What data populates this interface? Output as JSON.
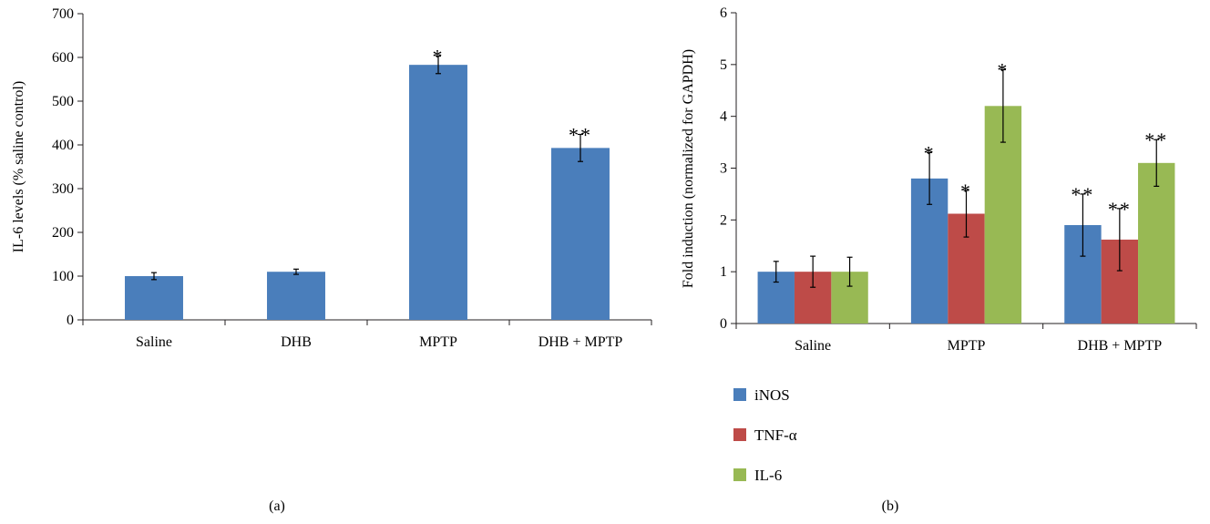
{
  "panels": {
    "a_label": "(a)",
    "b_label": "(b)"
  },
  "chart_data": [
    {
      "type": "bar",
      "ylabel": "IL-6 levels (% saline control)",
      "xlabel": "",
      "ylim": [
        0,
        700
      ],
      "yticks": [
        0,
        100,
        200,
        300,
        400,
        500,
        600,
        700
      ],
      "categories": [
        "Saline",
        "DHB",
        "MPTP",
        "DHB + MPTP"
      ],
      "series": [
        {
          "values": [
            100,
            110,
            583,
            393
          ],
          "errors": [
            8,
            6,
            20,
            31
          ],
          "color": "#4a7ebb"
        }
      ],
      "annotations": [
        "",
        "",
        "*",
        "**"
      ],
      "grid": false
    },
    {
      "type": "bar",
      "ylabel": "Fold induction (normalized for GAPDH)",
      "xlabel": "",
      "ylim": [
        0,
        6
      ],
      "yticks": [
        0,
        1,
        2,
        3,
        4,
        5,
        6
      ],
      "categories": [
        "Saline",
        "MPTP",
        "DHB + MPTP"
      ],
      "series": [
        {
          "name": "iNOS",
          "values": [
            1,
            2.8,
            1.9
          ],
          "errors": [
            0.2,
            0.5,
            0.6
          ],
          "color": "#4a7ebb"
        },
        {
          "name": "TNF-α",
          "values": [
            1,
            2.12,
            1.62
          ],
          "errors": [
            0.3,
            0.45,
            0.6
          ],
          "color": "#be4b48"
        },
        {
          "name": "IL-6",
          "values": [
            1,
            4.2,
            3.1
          ],
          "errors": [
            0.28,
            0.7,
            0.45
          ],
          "color": "#98b954"
        }
      ],
      "annotations": [
        [
          "",
          "",
          ""
        ],
        [
          "*",
          "*",
          "*"
        ],
        [
          "**",
          "**",
          "**"
        ]
      ],
      "legend_position": "bottom-left",
      "grid": false
    }
  ]
}
